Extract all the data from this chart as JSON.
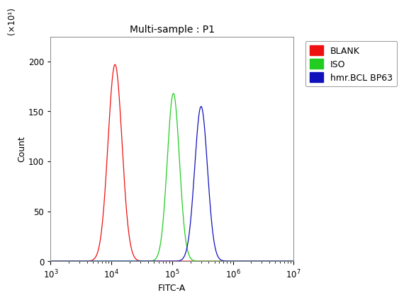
{
  "title": "Multi-sample : P1",
  "xlabel": "FITC-A",
  "ylabel": "Count",
  "ylabel_top_label": "(×10¹)",
  "xlim_log": [
    1000.0,
    10000000.0
  ],
  "ylim": [
    0,
    225
  ],
  "yticks": [
    0,
    50,
    100,
    150,
    200
  ],
  "background_color": "#ffffff",
  "plot_bg_color": "#ffffff",
  "curves": [
    {
      "label": "BLANK",
      "color": "#ee1111",
      "peak_x": 11500.0,
      "peak_y": 197,
      "sigma_log": 0.115
    },
    {
      "label": "ISO",
      "color": "#22cc22",
      "peak_x": 105000.0,
      "peak_y": 168,
      "sigma_log": 0.1
    },
    {
      "label": "hmr.BCL BP63",
      "color": "#1111bb",
      "peak_x": 300000.0,
      "peak_y": 155,
      "sigma_log": 0.105
    }
  ],
  "legend_colors": [
    "#ee1111",
    "#22cc22",
    "#1111bb"
  ],
  "legend_labels": [
    "BLANK",
    "ISO",
    "hmr.BCL BP63"
  ],
  "title_fontsize": 10,
  "axis_fontsize": 9,
  "tick_fontsize": 8.5,
  "legend_fontsize": 9
}
